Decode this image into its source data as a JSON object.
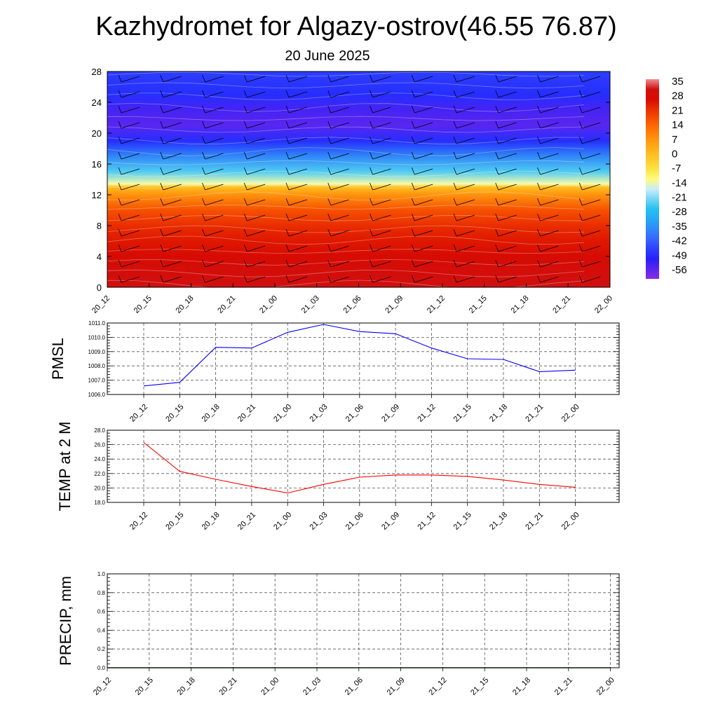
{
  "title": "Kazhydromet for Algazy-ostrov(46.55 76.87)",
  "subtitle": "20 June 2025",
  "chart_data": [
    {
      "type": "heatmap",
      "x_tick_labels": [
        "20_12",
        "20_15",
        "20_18",
        "20_21",
        "21_00",
        "21_03",
        "21_06",
        "21_09",
        "21_12",
        "21_15",
        "21_18",
        "21_21",
        "22_00"
      ],
      "y_ticks": [
        0,
        4,
        8,
        12,
        16,
        20,
        24,
        28
      ],
      "ylim": [
        0,
        28
      ],
      "colorbar": {
        "tick_labels": [
          "35",
          "28",
          "21",
          "14",
          "7",
          "0",
          "-7",
          "-14",
          "-21",
          "-28",
          "-35",
          "-42",
          "-49",
          "-56"
        ],
        "range": [
          -63,
          38
        ]
      },
      "z_profile": [
        {
          "y": 0,
          "value": 33
        },
        {
          "y": 2,
          "value": 31
        },
        {
          "y": 4,
          "value": 29
        },
        {
          "y": 6,
          "value": 26
        },
        {
          "y": 8,
          "value": 23
        },
        {
          "y": 10,
          "value": 18
        },
        {
          "y": 12,
          "value": 8
        },
        {
          "y": 13,
          "value": 0
        },
        {
          "y": 13.4,
          "value": -14
        },
        {
          "y": 15,
          "value": -25
        },
        {
          "y": 17,
          "value": -38
        },
        {
          "y": 19,
          "value": -50
        },
        {
          "y": 21,
          "value": -58
        },
        {
          "y": 23,
          "value": -56
        },
        {
          "y": 25,
          "value": -50
        },
        {
          "y": 28,
          "value": -48
        }
      ]
    },
    {
      "type": "line",
      "ylabel": "PMSL",
      "x_tick_labels": [
        "20_12",
        "20_15",
        "20_18",
        "20_21",
        "21_00",
        "21_03",
        "21_06",
        "21_09",
        "21_12",
        "21_15",
        "21_18",
        "21_21",
        "22_00"
      ],
      "y_tick_labels": [
        "1006.0",
        "1007.0",
        "1008.0",
        "1009.0",
        "1010.0",
        "1011.0"
      ],
      "ylim": [
        1006,
        1011
      ],
      "color": "#0000ff",
      "values": [
        1006.6,
        1006.85,
        1009.3,
        1009.25,
        1010.35,
        1010.9,
        1010.4,
        1010.25,
        1009.25,
        1008.5,
        1008.45,
        1007.6,
        1007.7
      ]
    },
    {
      "type": "line",
      "ylabel": "TEMP at 2 M",
      "x_tick_labels": [
        "20_12",
        "20_15",
        "20_18",
        "20_21",
        "21_00",
        "21_03",
        "21_06",
        "21_09",
        "21_12",
        "21_15",
        "21_18",
        "21_21",
        "22_00"
      ],
      "y_tick_labels": [
        "18.0",
        "20.0",
        "22.0",
        "24.0",
        "26.0",
        "28.0"
      ],
      "ylim": [
        18,
        28
      ],
      "color": "#ff0000",
      "values": [
        26.3,
        22.3,
        21.2,
        20.2,
        19.3,
        20.5,
        21.5,
        21.8,
        21.8,
        21.6,
        21.1,
        20.5,
        20.1
      ]
    },
    {
      "type": "line",
      "ylabel": "PRECIP, mm",
      "x_tick_labels": [
        "20_12",
        "20_15",
        "20_18",
        "20_21",
        "21_00",
        "21_03",
        "21_06",
        "21_09",
        "21_12",
        "21_15",
        "21_18",
        "21_21",
        "22_00"
      ],
      "y_tick_labels": [
        "0.0",
        "0.2",
        "0.4",
        "0.6",
        "0.8",
        "1.0"
      ],
      "ylim": [
        0,
        1
      ],
      "color": "#006400",
      "values": [
        0,
        0,
        0,
        0,
        0,
        0,
        0,
        0,
        0,
        0,
        0,
        0,
        0
      ]
    }
  ]
}
